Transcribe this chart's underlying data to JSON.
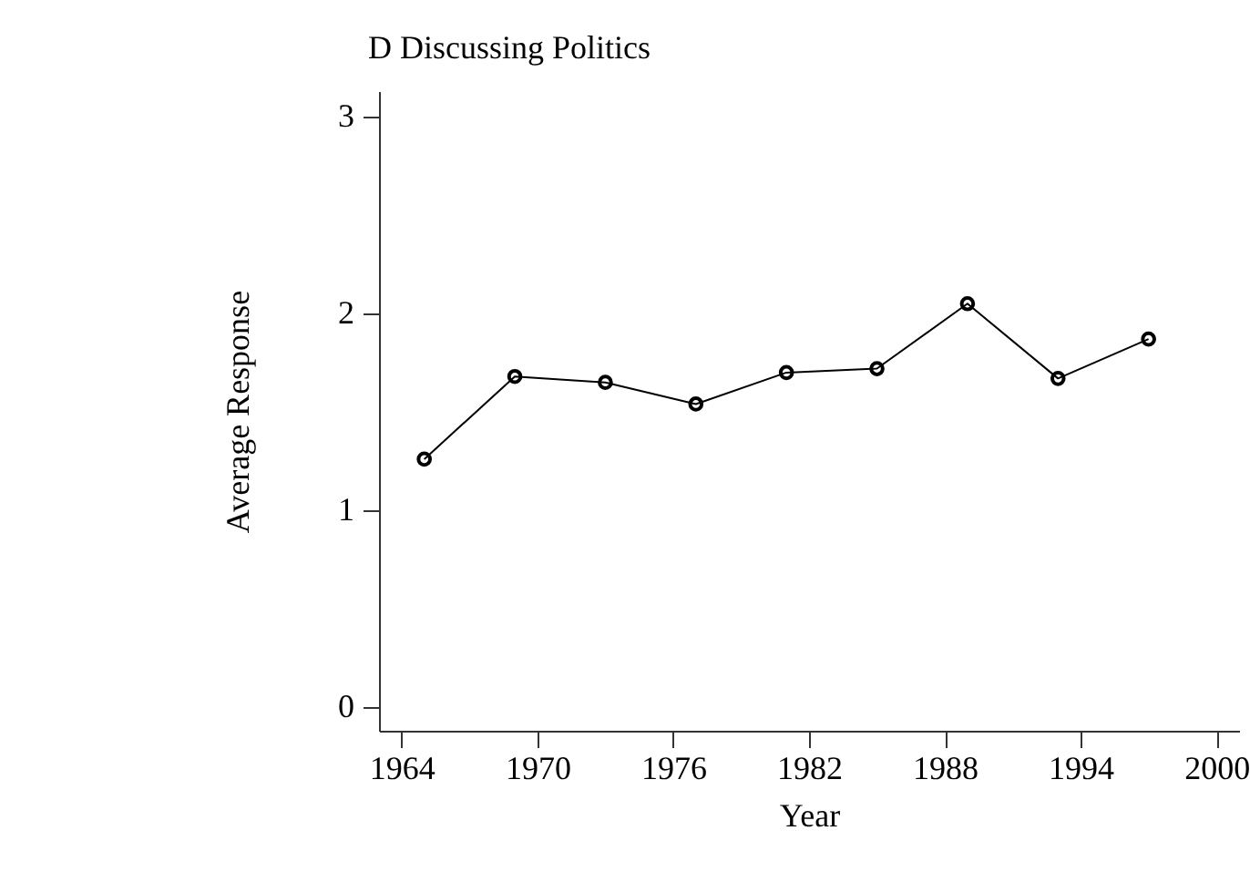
{
  "chart_data": {
    "type": "line",
    "title": "D Discussing Politics",
    "xlabel": "Year",
    "ylabel": "Average Response",
    "x": [
      1965,
      1969,
      1973,
      1977,
      1981,
      1985,
      1989,
      1993,
      1997
    ],
    "series": [
      {
        "color": "#000000",
        "values": [
          1.26,
          1.68,
          1.65,
          1.54,
          1.7,
          1.72,
          2.05,
          1.67,
          1.87
        ]
      }
    ],
    "xlim": [
      1963,
      2001
    ],
    "xticks": [
      1964,
      1970,
      1976,
      1982,
      1988,
      1994,
      2000
    ],
    "ylim": [
      -0.12,
      3.13
    ],
    "yticks": [
      0,
      1,
      2,
      3
    ],
    "marker": "circle",
    "line_style": "solid",
    "grid": false
  }
}
